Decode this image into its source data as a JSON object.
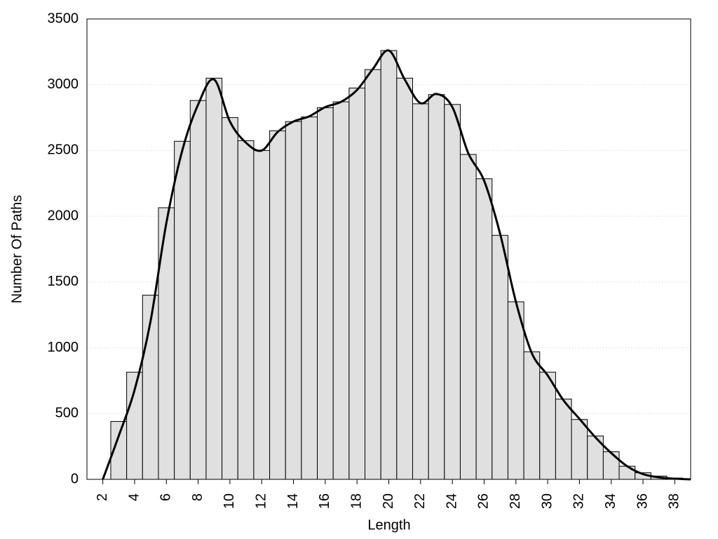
{
  "chart_data": {
    "type": "histogram",
    "x_label": "Length",
    "y_label": "Number Of Paths",
    "bins": [
      2.5,
      3.5,
      4.5,
      5.5,
      6.5,
      7.5,
      8.5,
      9.5,
      10.5,
      11.5,
      12.5,
      13.5,
      14.5,
      15.5,
      16.5,
      17.5,
      18.5,
      19.5,
      20.5,
      21.5,
      22.5,
      23.5,
      24.5,
      25.5,
      26.5,
      27.5,
      28.5,
      29.5,
      30.5,
      31.5,
      32.5,
      33.5,
      34.5,
      35.5,
      36.5,
      37.5,
      38.5
    ],
    "values": [
      440,
      815,
      1400,
      2065,
      2570,
      2880,
      3050,
      2750,
      2575,
      2500,
      2650,
      2720,
      2755,
      2825,
      2870,
      2975,
      3115,
      3260,
      3050,
      2855,
      2925,
      2850,
      2470,
      2285,
      1855,
      1350,
      970,
      815,
      610,
      455,
      330,
      210,
      100,
      50,
      25,
      10
    ],
    "color": "#e0e0e0",
    "curve": {
      "color": "#000000",
      "x": [
        2,
        3,
        4,
        5,
        6,
        7,
        8,
        9,
        10,
        11,
        12,
        13,
        14,
        15,
        16,
        17,
        18,
        19,
        20,
        21,
        22,
        23,
        24,
        25,
        26,
        27,
        28,
        29,
        30,
        31,
        32,
        33,
        34,
        35,
        36,
        37,
        38,
        39
      ],
      "values": [
        0,
        330,
        680,
        1200,
        1950,
        2500,
        2850,
        3040,
        2720,
        2560,
        2500,
        2640,
        2720,
        2760,
        2830,
        2870,
        2960,
        3120,
        3260,
        3040,
        2860,
        2930,
        2830,
        2480,
        2270,
        1870,
        1350,
        960,
        790,
        600,
        460,
        320,
        200,
        100,
        40,
        15,
        5,
        0
      ]
    },
    "xlim": [
      1,
      39
    ],
    "ylim": [
      0,
      3500
    ],
    "xticks": [
      2,
      4,
      6,
      8,
      10,
      12,
      14,
      16,
      18,
      20,
      22,
      24,
      26,
      28,
      30,
      32,
      34,
      36,
      38
    ],
    "yticks": [
      0,
      500,
      1000,
      1500,
      2000,
      2500,
      3000,
      3500
    ],
    "grid": true
  }
}
